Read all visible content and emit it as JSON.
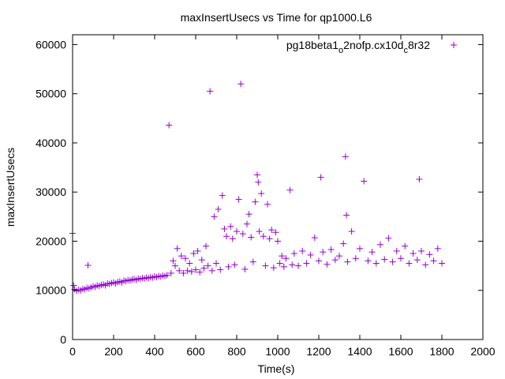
{
  "chart_data": {
    "type": "scatter",
    "title": "maxInsertUsecs vs Time for qp1000.L6",
    "xlabel": "Time(s)",
    "ylabel": "maxInsertUsecs",
    "xlim": [
      0,
      2000
    ],
    "ylim": [
      0,
      62000
    ],
    "xticks": [
      0,
      200,
      400,
      600,
      800,
      1000,
      1200,
      1400,
      1600,
      1800,
      2000
    ],
    "yticks": [
      0,
      10000,
      20000,
      30000,
      40000,
      50000,
      60000
    ],
    "xtick_labels": [
      "0",
      "200",
      "400",
      "600",
      "800",
      "1000",
      "1200",
      "1400",
      "1600",
      "1800",
      "2000"
    ],
    "ytick_labels": [
      "0",
      "10000",
      "20000",
      "30000",
      "40000",
      "50000",
      "60000"
    ],
    "grid": false,
    "legend": {
      "placement": "top-right"
    },
    "legend_label": {
      "base": "pg18beta1",
      "sub1": "o",
      "mid": "2nofp.cx10d",
      "sub2": "c",
      "end": "8r32"
    },
    "series": [
      {
        "name": "pg18beta1_o2nofp.cx10d_c8r32",
        "color": "#9400d3",
        "marker": "plus",
        "points": [
          [
            0,
            21600
          ],
          [
            5,
            11000
          ],
          [
            10,
            10200
          ],
          [
            20,
            9900
          ],
          [
            30,
            10100
          ],
          [
            40,
            10000
          ],
          [
            50,
            10300
          ],
          [
            60,
            10200
          ],
          [
            70,
            10500
          ],
          [
            75,
            15100
          ],
          [
            80,
            10400
          ],
          [
            90,
            10600
          ],
          [
            100,
            10800
          ],
          [
            110,
            10700
          ],
          [
            120,
            11000
          ],
          [
            130,
            10900
          ],
          [
            140,
            11100
          ],
          [
            150,
            11200
          ],
          [
            160,
            11000
          ],
          [
            170,
            11400
          ],
          [
            180,
            11300
          ],
          [
            190,
            11500
          ],
          [
            200,
            11600
          ],
          [
            210,
            11400
          ],
          [
            220,
            11700
          ],
          [
            230,
            11800
          ],
          [
            240,
            11600
          ],
          [
            250,
            12000
          ],
          [
            260,
            11900
          ],
          [
            270,
            12100
          ],
          [
            280,
            12000
          ],
          [
            290,
            12200
          ],
          [
            300,
            12300
          ],
          [
            310,
            12100
          ],
          [
            320,
            12400
          ],
          [
            330,
            12300
          ],
          [
            340,
            12500
          ],
          [
            350,
            12400
          ],
          [
            360,
            12600
          ],
          [
            370,
            12500
          ],
          [
            380,
            12700
          ],
          [
            390,
            12600
          ],
          [
            400,
            12800
          ],
          [
            410,
            12700
          ],
          [
            420,
            12900
          ],
          [
            430,
            12800
          ],
          [
            440,
            13000
          ],
          [
            450,
            12900
          ],
          [
            460,
            13100
          ],
          [
            470,
            43600
          ],
          [
            480,
            13500
          ],
          [
            490,
            16000
          ],
          [
            500,
            15000
          ],
          [
            510,
            18500
          ],
          [
            520,
            14000
          ],
          [
            530,
            17000
          ],
          [
            540,
            13500
          ],
          [
            550,
            16500
          ],
          [
            560,
            14000
          ],
          [
            570,
            15500
          ],
          [
            580,
            13800
          ],
          [
            590,
            17500
          ],
          [
            600,
            14200
          ],
          [
            610,
            18000
          ],
          [
            620,
            13700
          ],
          [
            630,
            16200
          ],
          [
            640,
            14500
          ],
          [
            650,
            19000
          ],
          [
            660,
            15000
          ],
          [
            670,
            50500
          ],
          [
            680,
            14000
          ],
          [
            690,
            25000
          ],
          [
            700,
            15500
          ],
          [
            710,
            26500
          ],
          [
            720,
            14200
          ],
          [
            730,
            29300
          ],
          [
            740,
            22500
          ],
          [
            750,
            21000
          ],
          [
            760,
            14800
          ],
          [
            770,
            23000
          ],
          [
            780,
            20500
          ],
          [
            790,
            15200
          ],
          [
            800,
            22000
          ],
          [
            810,
            28500
          ],
          [
            820,
            52000
          ],
          [
            830,
            21500
          ],
          [
            840,
            14300
          ],
          [
            850,
            23500
          ],
          [
            860,
            25500
          ],
          [
            870,
            20800
          ],
          [
            880,
            15800
          ],
          [
            890,
            28000
          ],
          [
            900,
            33500
          ],
          [
            905,
            32000
          ],
          [
            910,
            22000
          ],
          [
            920,
            29700
          ],
          [
            930,
            21000
          ],
          [
            940,
            15000
          ],
          [
            950,
            27500
          ],
          [
            960,
            20500
          ],
          [
            970,
            22300
          ],
          [
            980,
            14600
          ],
          [
            990,
            21800
          ],
          [
            1000,
            20000
          ],
          [
            1010,
            15500
          ],
          [
            1020,
            17000
          ],
          [
            1030,
            14800
          ],
          [
            1040,
            16500
          ],
          [
            1060,
            30400
          ],
          [
            1070,
            15200
          ],
          [
            1080,
            17500
          ],
          [
            1100,
            15000
          ],
          [
            1120,
            18000
          ],
          [
            1140,
            15500
          ],
          [
            1160,
            17200
          ],
          [
            1180,
            20700
          ],
          [
            1200,
            16000
          ],
          [
            1210,
            33000
          ],
          [
            1220,
            17800
          ],
          [
            1240,
            15300
          ],
          [
            1260,
            18300
          ],
          [
            1280,
            16200
          ],
          [
            1300,
            17000
          ],
          [
            1320,
            19500
          ],
          [
            1330,
            37200
          ],
          [
            1335,
            25300
          ],
          [
            1340,
            15800
          ],
          [
            1360,
            22000
          ],
          [
            1380,
            16500
          ],
          [
            1400,
            18500
          ],
          [
            1420,
            32200
          ],
          [
            1440,
            16000
          ],
          [
            1460,
            17800
          ],
          [
            1480,
            15500
          ],
          [
            1500,
            19300
          ],
          [
            1520,
            16300
          ],
          [
            1540,
            20600
          ],
          [
            1560,
            15800
          ],
          [
            1580,
            18000
          ],
          [
            1600,
            16500
          ],
          [
            1620,
            19000
          ],
          [
            1640,
            15500
          ],
          [
            1660,
            17500
          ],
          [
            1680,
            16200
          ],
          [
            1690,
            32600
          ],
          [
            1700,
            18000
          ],
          [
            1720,
            15200
          ],
          [
            1740,
            17300
          ],
          [
            1760,
            16000
          ],
          [
            1780,
            18500
          ],
          [
            1800,
            15500
          ]
        ]
      }
    ]
  }
}
